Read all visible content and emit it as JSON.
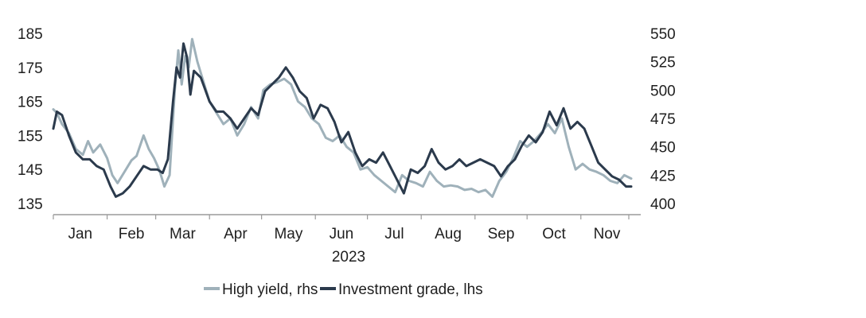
{
  "chart_data": {
    "type": "line",
    "x_group_label": "2023",
    "x_tick_labels": [
      "Jan",
      "Feb",
      "Mar",
      "Apr",
      "May",
      "Jun",
      "Jul",
      "Aug",
      "Sep",
      "Oct",
      "Nov"
    ],
    "left_axis": {
      "ylim": [
        135,
        185
      ],
      "ticks": [
        135,
        145,
        155,
        165,
        175,
        185
      ],
      "tick_labels": [
        "135",
        "145",
        "155",
        "165",
        "175",
        "185"
      ]
    },
    "right_axis": {
      "ylim": [
        400,
        550
      ],
      "ticks": [
        400,
        425,
        450,
        475,
        500,
        525,
        550
      ],
      "tick_labels": [
        "400",
        "425",
        "450",
        "475",
        "500",
        "525",
        "550"
      ]
    },
    "x_range": [
      "2023-01-01",
      "2023-11-30"
    ],
    "grid": false,
    "legend_position": "bottom",
    "legend": [
      "High yield, rhs",
      "Investment grade, lhs"
    ],
    "series": [
      {
        "name": "High yield, rhs",
        "axis": "right",
        "color": "#9fb1ba",
        "points": [
          [
            "2023-01-01",
            483
          ],
          [
            "2023-01-03",
            480
          ],
          [
            "2023-01-06",
            470
          ],
          [
            "2023-01-10",
            462
          ],
          [
            "2023-01-14",
            448
          ],
          [
            "2023-01-18",
            443
          ],
          [
            "2023-01-21",
            455
          ],
          [
            "2023-01-24",
            445
          ],
          [
            "2023-01-28",
            452
          ],
          [
            "2023-02-01",
            440
          ],
          [
            "2023-02-04",
            425
          ],
          [
            "2023-02-07",
            418
          ],
          [
            "2023-02-11",
            428
          ],
          [
            "2023-02-15",
            438
          ],
          [
            "2023-02-18",
            442
          ],
          [
            "2023-02-22",
            460
          ],
          [
            "2023-02-25",
            448
          ],
          [
            "2023-02-28",
            440
          ],
          [
            "2023-03-03",
            430
          ],
          [
            "2023-03-06",
            415
          ],
          [
            "2023-03-09",
            425
          ],
          [
            "2023-03-12",
            500
          ],
          [
            "2023-03-14",
            535
          ],
          [
            "2023-03-16",
            505
          ],
          [
            "2023-03-18",
            530
          ],
          [
            "2023-03-20",
            520
          ],
          [
            "2023-03-22",
            545
          ],
          [
            "2023-03-25",
            525
          ],
          [
            "2023-03-28",
            510
          ],
          [
            "2023-04-01",
            490
          ],
          [
            "2023-04-05",
            480
          ],
          [
            "2023-04-09",
            470
          ],
          [
            "2023-04-13",
            475
          ],
          [
            "2023-04-17",
            460
          ],
          [
            "2023-04-21",
            470
          ],
          [
            "2023-04-25",
            485
          ],
          [
            "2023-04-29",
            475
          ],
          [
            "2023-05-02",
            500
          ],
          [
            "2023-05-06",
            505
          ],
          [
            "2023-05-10",
            507
          ],
          [
            "2023-05-14",
            510
          ],
          [
            "2023-05-18",
            505
          ],
          [
            "2023-05-22",
            490
          ],
          [
            "2023-05-26",
            485
          ],
          [
            "2023-05-30",
            475
          ],
          [
            "2023-06-03",
            470
          ],
          [
            "2023-06-07",
            458
          ],
          [
            "2023-06-11",
            455
          ],
          [
            "2023-06-15",
            460
          ],
          [
            "2023-06-19",
            450
          ],
          [
            "2023-06-23",
            445
          ],
          [
            "2023-06-27",
            430
          ],
          [
            "2023-07-01",
            432
          ],
          [
            "2023-07-05",
            425
          ],
          [
            "2023-07-09",
            420
          ],
          [
            "2023-07-13",
            415
          ],
          [
            "2023-07-17",
            410
          ],
          [
            "2023-07-21",
            425
          ],
          [
            "2023-07-25",
            420
          ],
          [
            "2023-07-29",
            418
          ],
          [
            "2023-08-02",
            415
          ],
          [
            "2023-08-06",
            428
          ],
          [
            "2023-08-10",
            420
          ],
          [
            "2023-08-14",
            415
          ],
          [
            "2023-08-18",
            416
          ],
          [
            "2023-08-22",
            415
          ],
          [
            "2023-08-26",
            412
          ],
          [
            "2023-08-30",
            413
          ],
          [
            "2023-09-03",
            410
          ],
          [
            "2023-09-07",
            412
          ],
          [
            "2023-09-11",
            406
          ],
          [
            "2023-09-15",
            420
          ],
          [
            "2023-09-19",
            428
          ],
          [
            "2023-09-23",
            440
          ],
          [
            "2023-09-27",
            455
          ],
          [
            "2023-10-01",
            450
          ],
          [
            "2023-10-05",
            455
          ],
          [
            "2023-10-09",
            462
          ],
          [
            "2023-10-13",
            470
          ],
          [
            "2023-10-17",
            462
          ],
          [
            "2023-10-21",
            475
          ],
          [
            "2023-10-25",
            450
          ],
          [
            "2023-10-29",
            430
          ],
          [
            "2023-11-02",
            435
          ],
          [
            "2023-11-06",
            430
          ],
          [
            "2023-11-10",
            428
          ],
          [
            "2023-11-14",
            425
          ],
          [
            "2023-11-18",
            420
          ],
          [
            "2023-11-22",
            418
          ],
          [
            "2023-11-26",
            425
          ],
          [
            "2023-11-30",
            422
          ]
        ]
      },
      {
        "name": "Investment grade, lhs",
        "axis": "left",
        "color": "#2b3a4c",
        "points": [
          [
            "2023-01-01",
            157
          ],
          [
            "2023-01-03",
            162
          ],
          [
            "2023-01-06",
            161
          ],
          [
            "2023-01-10",
            155
          ],
          [
            "2023-01-14",
            150
          ],
          [
            "2023-01-18",
            148
          ],
          [
            "2023-01-22",
            148
          ],
          [
            "2023-01-26",
            146
          ],
          [
            "2023-01-30",
            145
          ],
          [
            "2023-02-03",
            140
          ],
          [
            "2023-02-06",
            137
          ],
          [
            "2023-02-10",
            138
          ],
          [
            "2023-02-14",
            140
          ],
          [
            "2023-02-18",
            143
          ],
          [
            "2023-02-22",
            146
          ],
          [
            "2023-02-26",
            145
          ],
          [
            "2023-03-02",
            145
          ],
          [
            "2023-03-05",
            144
          ],
          [
            "2023-03-08",
            148
          ],
          [
            "2023-03-11",
            165
          ],
          [
            "2023-03-13",
            175
          ],
          [
            "2023-03-15",
            172
          ],
          [
            "2023-03-17",
            182
          ],
          [
            "2023-03-19",
            178
          ],
          [
            "2023-03-21",
            167
          ],
          [
            "2023-03-23",
            174
          ],
          [
            "2023-03-27",
            172
          ],
          [
            "2023-04-01",
            165
          ],
          [
            "2023-04-05",
            162
          ],
          [
            "2023-04-09",
            162
          ],
          [
            "2023-04-13",
            160
          ],
          [
            "2023-04-17",
            157
          ],
          [
            "2023-04-21",
            160
          ],
          [
            "2023-04-25",
            163
          ],
          [
            "2023-04-29",
            161
          ],
          [
            "2023-05-03",
            168
          ],
          [
            "2023-05-07",
            170
          ],
          [
            "2023-05-11",
            172
          ],
          [
            "2023-05-15",
            175
          ],
          [
            "2023-05-19",
            172
          ],
          [
            "2023-05-23",
            168
          ],
          [
            "2023-05-27",
            166
          ],
          [
            "2023-05-31",
            160
          ],
          [
            "2023-06-04",
            164
          ],
          [
            "2023-06-08",
            163
          ],
          [
            "2023-06-12",
            159
          ],
          [
            "2023-06-16",
            153
          ],
          [
            "2023-06-20",
            156
          ],
          [
            "2023-06-24",
            150
          ],
          [
            "2023-06-28",
            146
          ],
          [
            "2023-07-02",
            148
          ],
          [
            "2023-07-06",
            147
          ],
          [
            "2023-07-10",
            150
          ],
          [
            "2023-07-14",
            146
          ],
          [
            "2023-07-18",
            142
          ],
          [
            "2023-07-22",
            138
          ],
          [
            "2023-07-26",
            145
          ],
          [
            "2023-07-30",
            144
          ],
          [
            "2023-08-03",
            146
          ],
          [
            "2023-08-07",
            151
          ],
          [
            "2023-08-11",
            147
          ],
          [
            "2023-08-15",
            145
          ],
          [
            "2023-08-19",
            146
          ],
          [
            "2023-08-23",
            148
          ],
          [
            "2023-08-27",
            146
          ],
          [
            "2023-08-31",
            147
          ],
          [
            "2023-09-04",
            148
          ],
          [
            "2023-09-08",
            147
          ],
          [
            "2023-09-12",
            146
          ],
          [
            "2023-09-16",
            143
          ],
          [
            "2023-09-20",
            146
          ],
          [
            "2023-09-24",
            148
          ],
          [
            "2023-09-28",
            152
          ],
          [
            "2023-10-02",
            155
          ],
          [
            "2023-10-06",
            153
          ],
          [
            "2023-10-10",
            156
          ],
          [
            "2023-10-14",
            162
          ],
          [
            "2023-10-18",
            158
          ],
          [
            "2023-10-22",
            163
          ],
          [
            "2023-10-26",
            157
          ],
          [
            "2023-10-30",
            159
          ],
          [
            "2023-11-03",
            157
          ],
          [
            "2023-11-07",
            152
          ],
          [
            "2023-11-11",
            147
          ],
          [
            "2023-11-15",
            145
          ],
          [
            "2023-11-19",
            143
          ],
          [
            "2023-11-23",
            142
          ],
          [
            "2023-11-27",
            140
          ],
          [
            "2023-11-30",
            140
          ]
        ]
      }
    ]
  }
}
